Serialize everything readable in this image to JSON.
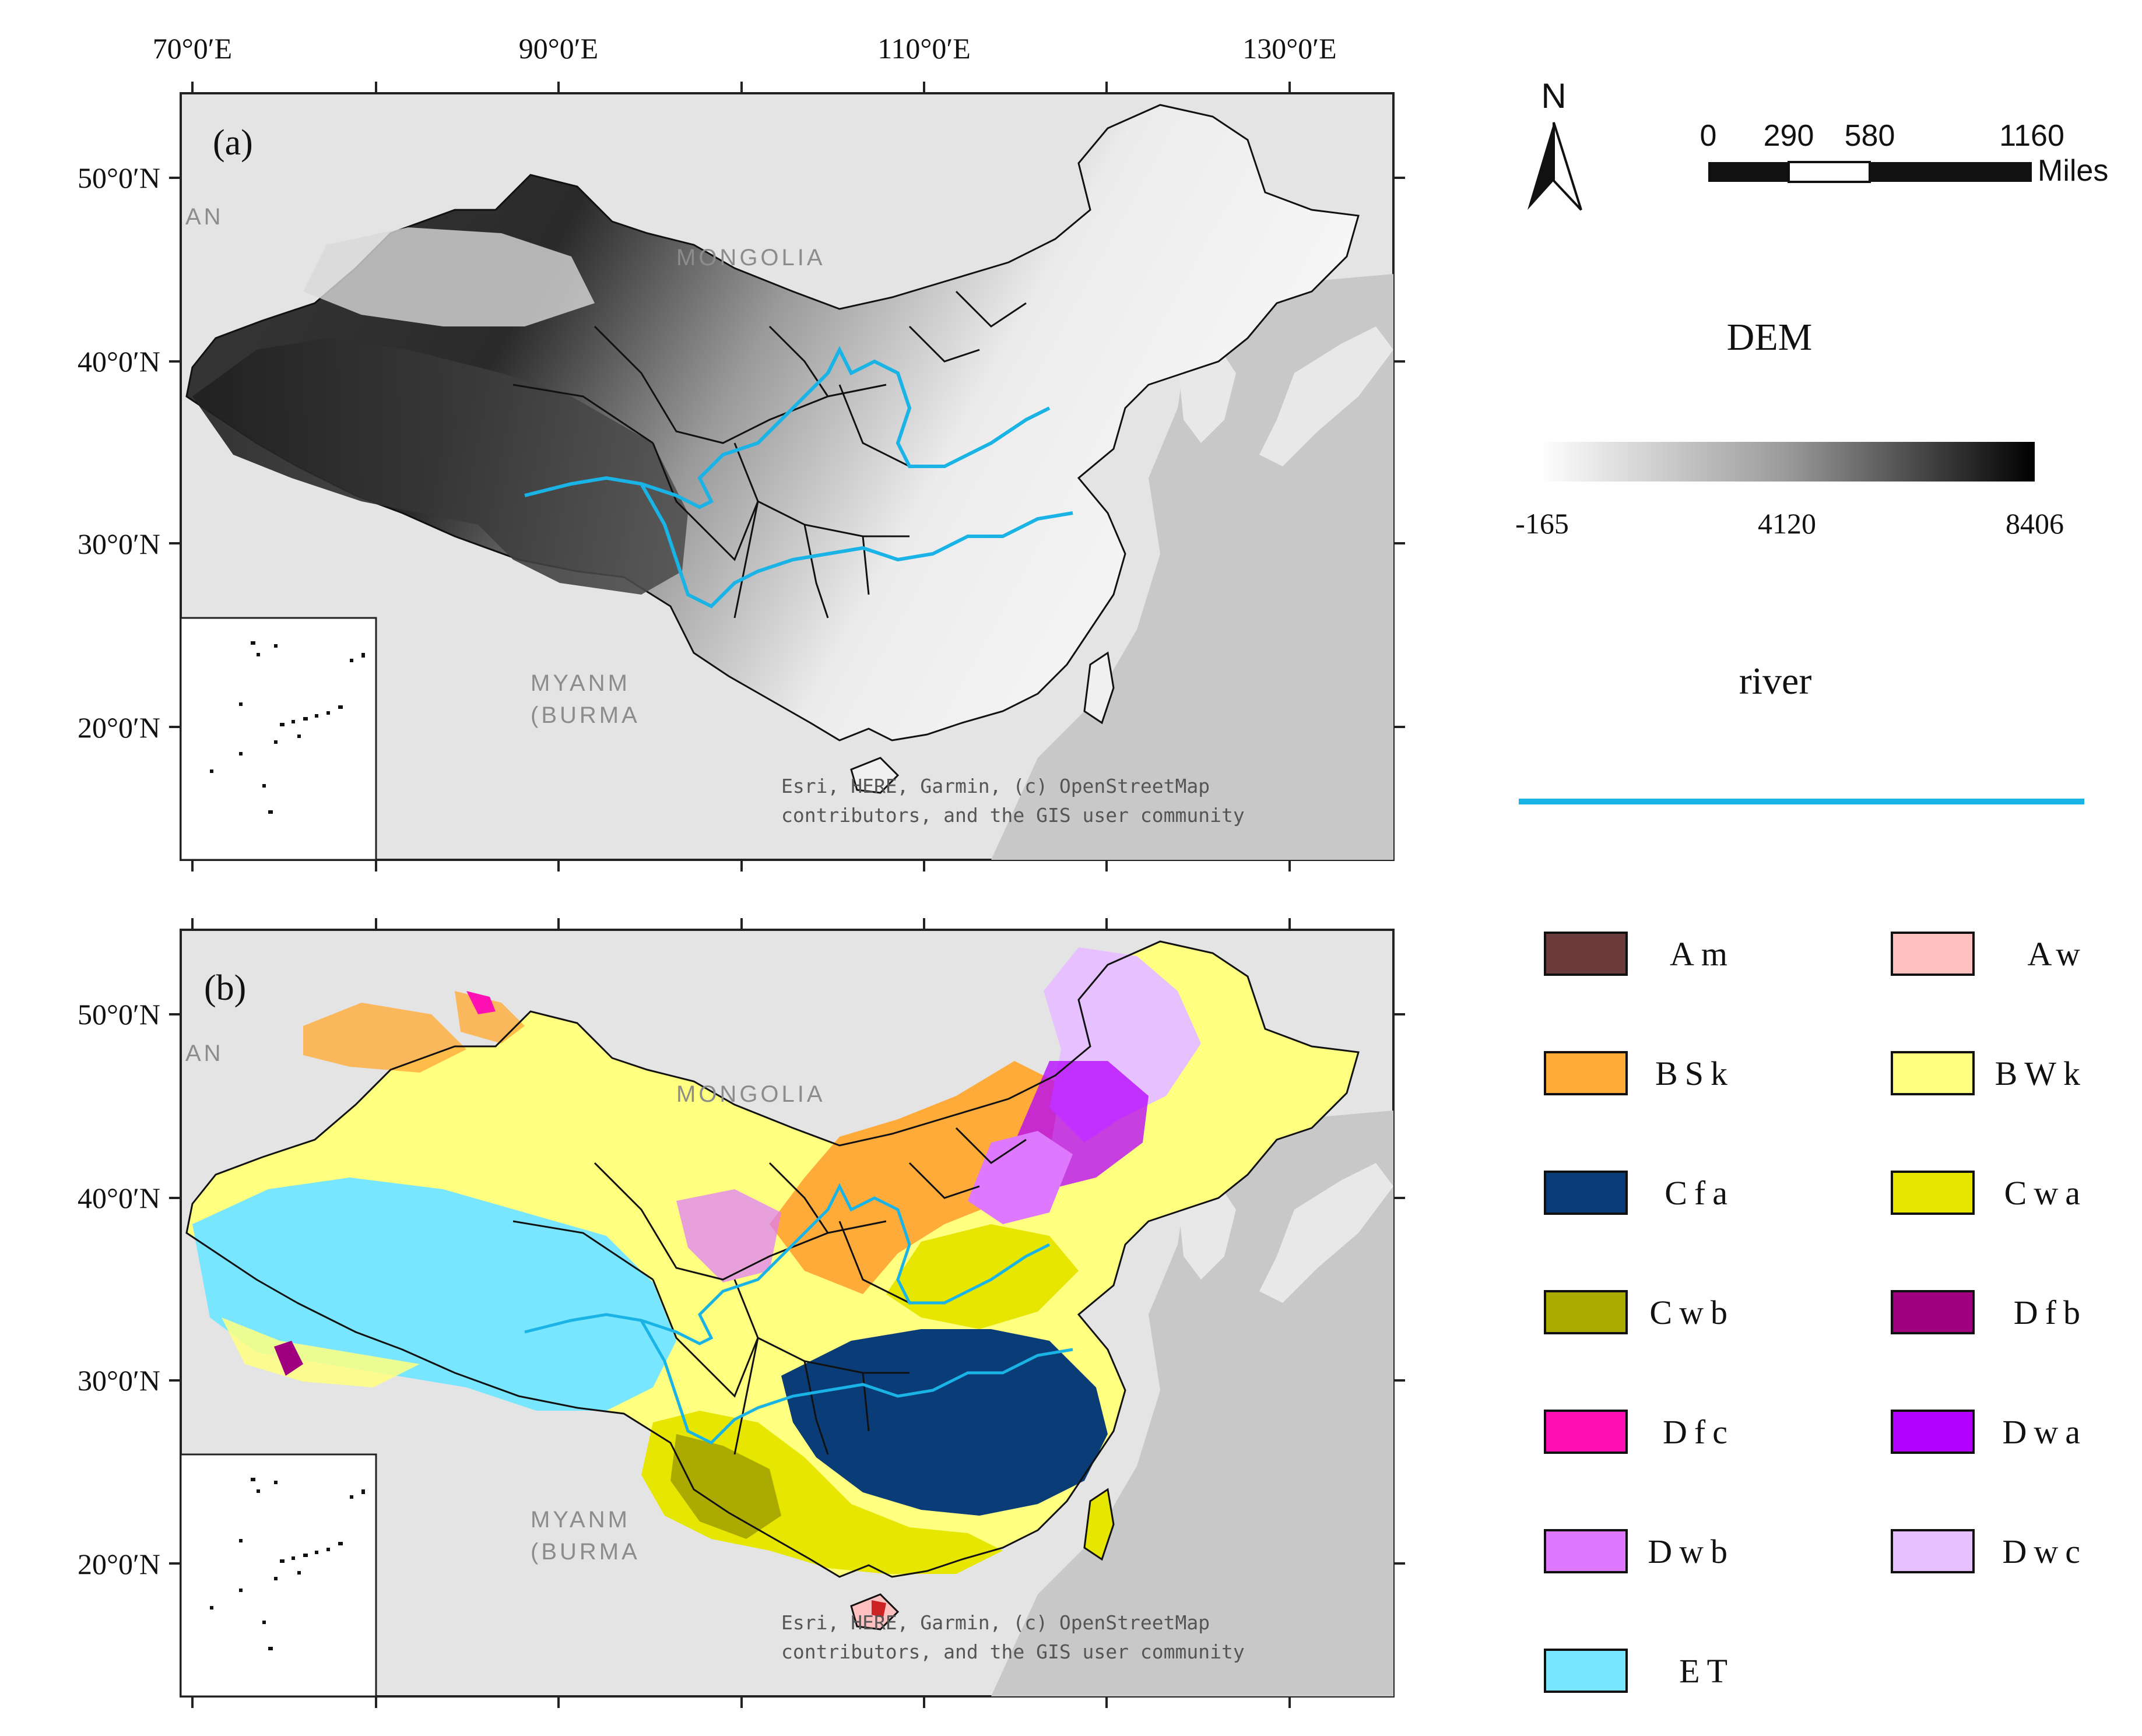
{
  "top_axis": {
    "lon_labels": [
      "70°0′E",
      "90°0′E",
      "110°0′E",
      "130°0′E"
    ]
  },
  "panel_a": {
    "tag": "(a)",
    "lat_labels": [
      "50°0′N",
      "40°0′N",
      "30°0′N",
      "20°0′N"
    ],
    "basemap_labels": [
      "MONGOLIA",
      "MYANM",
      "(BURMA",
      "AN"
    ],
    "attribution_line1": "Esri, HERE, Garmin, (c) OpenStreetMap",
    "attribution_line2": "contributors, and the GIS user community"
  },
  "panel_b": {
    "tag": "(b)",
    "lat_labels": [
      "50°0′N",
      "40°0′N",
      "30°0′N",
      "20°0′N"
    ],
    "basemap_labels": [
      "MONGOLIA",
      "MYANM",
      "(BURMA",
      "AN"
    ],
    "attribution_line1": "Esri, HERE, Garmin, (c) OpenStreetMap",
    "attribution_line2": "contributors, and the GIS user community"
  },
  "north_arrow": {
    "label": "N"
  },
  "scale_bar": {
    "ticks": [
      "0",
      "290",
      "580",
      "1160"
    ],
    "unit": "Miles"
  },
  "dem_legend": {
    "title": "DEM",
    "min": "-165",
    "mid": "4120",
    "max": "8406",
    "colors": [
      "#ffffff",
      "#000000"
    ]
  },
  "river_legend": {
    "title": "river",
    "color": "#1ab3e6"
  },
  "climate_legend": [
    {
      "code": "Am",
      "color": "#6b3a3a"
    },
    {
      "code": "Aw",
      "color": "#ffc0c0"
    },
    {
      "code": "BSk",
      "color": "#ffab3a"
    },
    {
      "code": "BWk",
      "color": "#ffff80"
    },
    {
      "code": "Cfa",
      "color": "#0a3c78"
    },
    {
      "code": "Cwa",
      "color": "#e6e600"
    },
    {
      "code": "Cwb",
      "color": "#aaaa00"
    },
    {
      "code": "Dfb",
      "color": "#a00080"
    },
    {
      "code": "Dfc",
      "color": "#ff10b4"
    },
    {
      "code": "Dwa",
      "color": "#b400ff"
    },
    {
      "code": "Dwb",
      "color": "#dd78ff"
    },
    {
      "code": "Dwc",
      "color": "#e6c0ff"
    },
    {
      "code": "ET",
      "color": "#78e6ff"
    }
  ]
}
